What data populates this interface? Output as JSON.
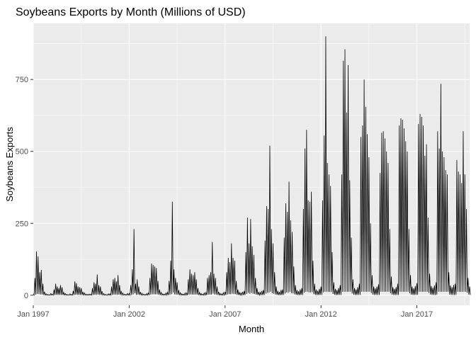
{
  "chart_data": {
    "type": "line",
    "title": "Soybeans Exports by Month (Millions of USD)",
    "xlabel": "Month",
    "ylabel": "Soybeans Exports",
    "x_tick_labels": [
      "Jan 1997",
      "Jan 2002",
      "Jan 2007",
      "Jan 2012",
      "Jan 2017"
    ],
    "x_tick_years": [
      1997,
      2002,
      2007,
      2012,
      2017
    ],
    "y_tick_labels": [
      "0",
      "250",
      "500",
      "750"
    ],
    "y_ticks": [
      0,
      250,
      500,
      750
    ],
    "xlim": [
      "1997-01",
      "2019-10"
    ],
    "ylim": [
      -35,
      945
    ],
    "grid": true,
    "legend": "none",
    "line_color": "#000000",
    "panel_color": "#ebebeb",
    "series": [
      {
        "description_note": "",
        "annual_peaks": [
          {
            "year": 1997,
            "values": [
              5,
              60,
              152,
              135,
              80,
              88,
              40,
              12,
              5,
              3,
              2,
              6
            ]
          },
          {
            "year": 1998,
            "values": [
              4,
              20,
              40,
              30,
              25,
              35,
              28,
              10,
              6,
              3,
              2,
              5
            ]
          },
          {
            "year": 1999,
            "values": [
              3,
              15,
              48,
              42,
              30,
              28,
              25,
              12,
              8,
              4,
              3,
              4
            ]
          },
          {
            "year": 2000,
            "values": [
              4,
              25,
              45,
              40,
              72,
              35,
              30,
              14,
              6,
              3,
              2,
              5
            ]
          },
          {
            "year": 2001,
            "values": [
              5,
              30,
              55,
              60,
              48,
              70,
              35,
              15,
              8,
              4,
              3,
              6
            ]
          },
          {
            "year": 2002,
            "values": [
              6,
              35,
              90,
              230,
              40,
              55,
              30,
              12,
              7,
              4,
              3,
              6
            ]
          },
          {
            "year": 2003,
            "values": [
              8,
              60,
              110,
              105,
              100,
              95,
              50,
              20,
              10,
              5,
              4,
              8
            ]
          },
          {
            "year": 2004,
            "values": [
              10,
              50,
              120,
              325,
              90,
              60,
              45,
              18,
              9,
              5,
              4,
              8
            ]
          },
          {
            "year": 2005,
            "values": [
              8,
              55,
              90,
              75,
              70,
              80,
              55,
              25,
              10,
              6,
              4,
              8
            ]
          },
          {
            "year": 2006,
            "values": [
              9,
              60,
              70,
              80,
              185,
              75,
              60,
              30,
              12,
              6,
              5,
              9
            ]
          },
          {
            "year": 2007,
            "values": [
              12,
              80,
              130,
              115,
              180,
              130,
              120,
              50,
              20,
              10,
              8,
              12
            ]
          },
          {
            "year": 2008,
            "values": [
              15,
              150,
              270,
              180,
              265,
              170,
              140,
              60,
              25,
              12,
              10,
              15
            ]
          },
          {
            "year": 2009,
            "values": [
              18,
              190,
              310,
              300,
              520,
              230,
              180,
              80,
              30,
              15,
              12,
              18
            ]
          },
          {
            "year": 2010,
            "values": [
              20,
              200,
              320,
              290,
              395,
              260,
              220,
              100,
              35,
              18,
              14,
              20
            ]
          },
          {
            "year": 2011,
            "values": [
              25,
              300,
              510,
              575,
              330,
              325,
              360,
              120,
              40,
              20,
              16,
              22
            ]
          },
          {
            "year": 2012,
            "values": [
              30,
              330,
              555,
              900,
              460,
              420,
              380,
              150,
              45,
              22,
              18,
              25
            ]
          },
          {
            "year": 2013,
            "values": [
              35,
              420,
              815,
              855,
              635,
              800,
              400,
              200,
              55,
              25,
              20,
              28
            ]
          },
          {
            "year": 2014,
            "values": [
              40,
              550,
              590,
              750,
              655,
              560,
              480,
              250,
              70,
              30,
              24,
              30
            ]
          },
          {
            "year": 2015,
            "values": [
              38,
              425,
              565,
              570,
              545,
              500,
              460,
              230,
              65,
              28,
              22,
              28
            ]
          },
          {
            "year": 2016,
            "values": [
              40,
              590,
              615,
              610,
              580,
              535,
              500,
              230,
              70,
              30,
              24,
              32
            ]
          },
          {
            "year": 2017,
            "values": [
              42,
              595,
              630,
              620,
              590,
              485,
              525,
              270,
              75,
              32,
              26,
              34
            ]
          },
          {
            "year": 2018,
            "values": [
              45,
              570,
              510,
              735,
              500,
              480,
              435,
              420,
              80,
              34,
              28,
              36
            ]
          },
          {
            "year": 2019,
            "values": [
              40,
              470,
              430,
              420,
              390,
              570,
              420,
              300,
              60,
              30
            ]
          }
        ]
      }
    ]
  }
}
